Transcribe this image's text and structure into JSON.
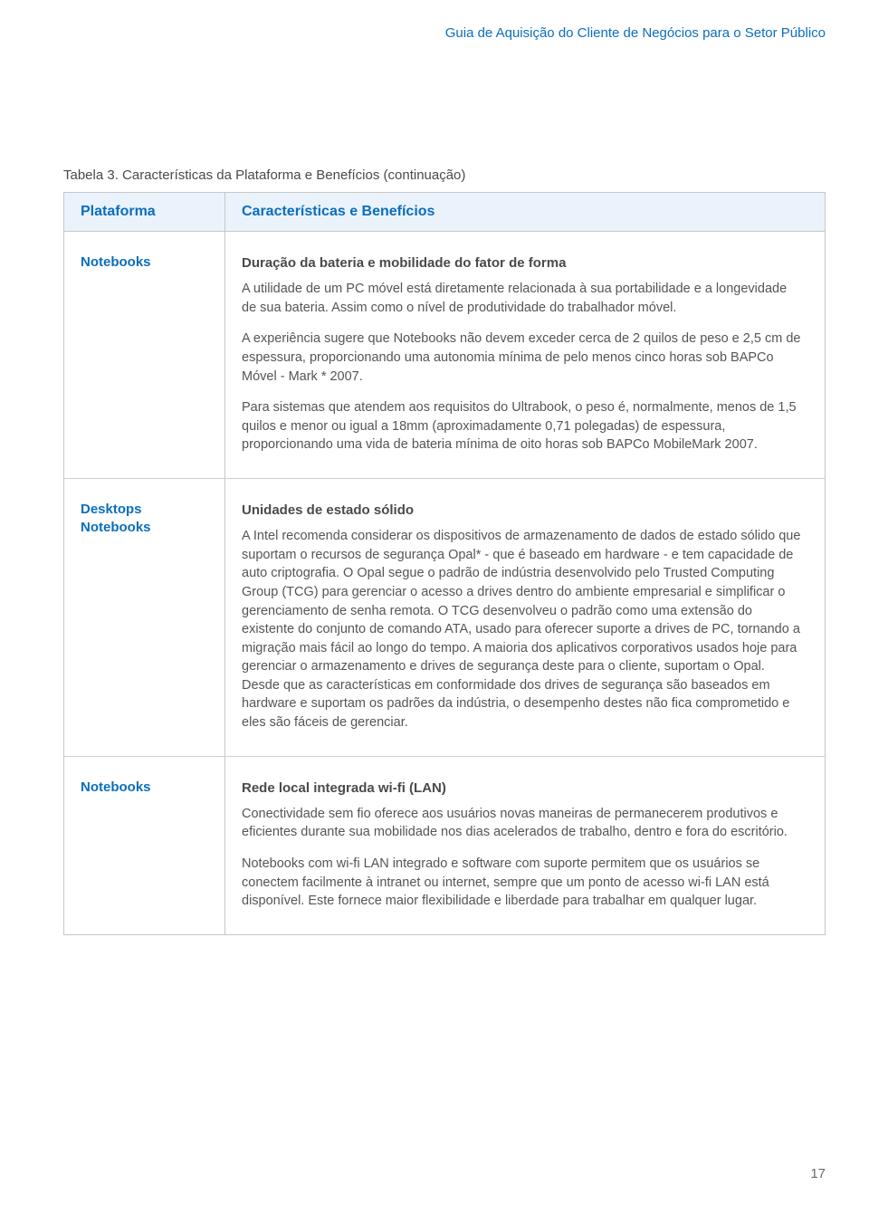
{
  "header": {
    "running_title": "Guia de Aquisição do Cliente de Negócios para o Setor Público"
  },
  "table": {
    "caption": "Tabela 3. Características da Plataforma e Benefícios (continuação)",
    "columns": {
      "platform": "Plataforma",
      "features": "Características e Benefícios"
    },
    "rows": [
      {
        "platform": "Notebooks",
        "title": "Duração da bateria e mobilidade do fator de forma",
        "paragraphs": [
          "A utilidade de um PC móvel está diretamente relacionada à sua portabilidade e a longevidade de sua bateria. Assim como o nível de produtividade do trabalhador móvel.",
          "A experiência sugere que Notebooks não devem exceder cerca de 2 quilos de peso e 2,5 cm de espessura, proporcionando uma autonomia mínima de pelo menos cinco horas sob BAPCo Móvel - Mark * 2007.",
          "Para sistemas que atendem aos requisitos do Ultrabook, o peso é, normalmente, menos de 1,5 quilos e menor ou igual a 18mm (aproximadamente 0,71 polegadas) de espessura, proporcionando uma vida de bateria mínima de oito horas sob BAPCo MobileMark 2007."
        ]
      },
      {
        "platform": "Desktops\nNotebooks",
        "title": "Unidades de estado sólido",
        "paragraphs": [
          "A Intel recomenda considerar os dispositivos de armazenamento de dados de estado sólido que suportam o recursos de segurança Opal* - que é baseado em hardware - e tem capacidade de auto criptografia. O Opal segue o padrão de indústria desenvolvido pelo Trusted Computing Group (TCG) para gerenciar o acesso a drives dentro do ambiente empresarial e simplificar o gerenciamento de senha remota. O TCG desenvolveu o padrão como uma extensão do existente do conjunto de comando ATA, usado para oferecer suporte a drives de PC, tornando a migração mais fácil ao longo do tempo. A maioria dos aplicativos corporativos usados hoje para gerenciar o armazenamento e drives de segurança deste para o cliente, suportam o Opal. Desde que as características em conformidade dos drives de segurança são baseados em hardware e suportam os padrões da indústria, o desempenho destes não fica comprometido e eles são fáceis de gerenciar."
        ]
      },
      {
        "platform": "Notebooks",
        "title": "Rede local integrada wi-fi (LAN)",
        "paragraphs": [
          "Conectividade sem fio oferece aos usuários novas maneiras de permanecerem produtivos e eficientes durante sua mobilidade nos dias acelerados de trabalho, dentro e fora do escritório.",
          "Notebooks com wi-fi LAN integrado e software com suporte permitem que os usuários se conectem facilmente à intranet ou internet, sempre que um ponto de acesso wi-fi LAN está disponível. Este fornece maior flexibilidade e liberdade para trabalhar em qualquer lugar."
        ]
      }
    ]
  },
  "page_number": "17",
  "colors": {
    "brand_blue": "#0a6ebd",
    "header_bg": "#eaf3fb",
    "border": "#c7c7c7",
    "body_text": "#555555"
  }
}
